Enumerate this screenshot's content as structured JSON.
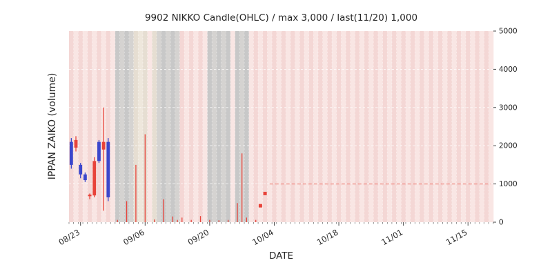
{
  "chart_data": {
    "type": "candlestick",
    "title": "9902 NIKKO Candle(OHLC) / max 3,000 / last(11/20) 1,000",
    "xlabel": "DATE",
    "ylabel": "IPPAN ZAIKO (volume)",
    "ylim": [
      0,
      5000
    ],
    "y_ticks": [
      0,
      1000,
      2000,
      3000,
      4000,
      5000
    ],
    "axis_start_date": "08/21",
    "days_total": 92,
    "max_value": 3000,
    "last_value": 1000,
    "last_date": "11/20",
    "x_ticks": [
      {
        "day": 2,
        "label": "08/23"
      },
      {
        "day": 16,
        "label": "09/06"
      },
      {
        "day": 30,
        "label": "09/20"
      },
      {
        "day": 44,
        "label": "10/04"
      },
      {
        "day": 58,
        "label": "10/18"
      },
      {
        "day": 72,
        "label": "11/01"
      },
      {
        "day": 86,
        "label": "11/15"
      }
    ],
    "bands": [
      {
        "from": 10,
        "to": 14,
        "type": "gray"
      },
      {
        "from": 14,
        "to": 17,
        "type": "tan"
      },
      {
        "from": 18,
        "to": 19,
        "type": "tan"
      },
      {
        "from": 19,
        "to": 24,
        "type": "gray"
      },
      {
        "from": 30,
        "to": 35,
        "type": "gray"
      },
      {
        "from": 36,
        "to": 39,
        "type": "gray"
      }
    ],
    "candles": [
      {
        "day": 0,
        "date": "08/21",
        "open": 2100,
        "high": 2200,
        "low": 1400,
        "close": 1500
      },
      {
        "day": 1,
        "date": "08/22",
        "open": 1950,
        "high": 2250,
        "low": 1850,
        "close": 2150
      },
      {
        "day": 2,
        "date": "08/23",
        "open": 1500,
        "high": 1550,
        "low": 1150,
        "close": 1250
      },
      {
        "day": 3,
        "date": "08/24",
        "open": 1250,
        "high": 1300,
        "low": 1050,
        "close": 1100
      },
      {
        "day": 4,
        "date": "08/25",
        "open": 680,
        "high": 750,
        "low": 600,
        "close": 720
      },
      {
        "day": 5,
        "date": "08/26",
        "open": 700,
        "high": 1700,
        "low": 650,
        "close": 1600
      },
      {
        "day": 6,
        "date": "08/27",
        "open": 2100,
        "high": 2150,
        "low": 1550,
        "close": 1600
      },
      {
        "day": 7,
        "date": "08/28",
        "open": 1900,
        "high": 3000,
        "low": 300,
        "close": 2100
      },
      {
        "day": 8,
        "date": "08/29",
        "open": 2100,
        "high": 2200,
        "low": 550,
        "close": 650
      }
    ],
    "spikes": [
      {
        "day": 10,
        "date": "08/31",
        "high": 60,
        "low": 0
      },
      {
        "day": 12,
        "date": "09/02",
        "high": 550,
        "low": 0
      },
      {
        "day": 14,
        "date": "09/04",
        "high": 1500,
        "low": 0
      },
      {
        "day": 16,
        "date": "09/06",
        "high": 2300,
        "low": 0
      },
      {
        "day": 18,
        "date": "09/08",
        "high": 70,
        "low": 0
      },
      {
        "day": 20,
        "date": "09/10",
        "high": 600,
        "low": 0
      },
      {
        "day": 22,
        "date": "09/12",
        "high": 150,
        "low": 0
      },
      {
        "day": 23,
        "date": "09/13",
        "high": 60,
        "low": 0
      },
      {
        "day": 24,
        "date": "09/14",
        "high": 120,
        "low": 0
      },
      {
        "day": 26,
        "date": "09/16",
        "high": 60,
        "low": 0
      },
      {
        "day": 28,
        "date": "09/18",
        "high": 160,
        "low": 0
      },
      {
        "day": 30,
        "date": "09/20",
        "high": 60,
        "low": 0
      },
      {
        "day": 32,
        "date": "09/22",
        "high": 50,
        "low": 0
      },
      {
        "day": 34,
        "date": "09/24",
        "high": 60,
        "low": 0
      },
      {
        "day": 36,
        "date": "09/26",
        "high": 500,
        "low": 0
      },
      {
        "day": 37,
        "date": "09/27",
        "high": 1800,
        "low": 0
      },
      {
        "day": 38,
        "date": "09/28",
        "high": 120,
        "low": 0
      },
      {
        "day": 40,
        "date": "09/30",
        "high": 60,
        "low": 0
      }
    ],
    "markers": [
      {
        "day": 41,
        "date": "10/01",
        "value": 430
      },
      {
        "day": 42,
        "date": "10/02",
        "value": 750
      }
    ],
    "last_price_line": {
      "value": 1000,
      "start_day": 43,
      "end_day": 91,
      "start_date": "10/03",
      "end_date": "11/20"
    }
  },
  "colors": {
    "up": "#e8433a",
    "down": "#3b47cc",
    "marker": "#e8433a",
    "last_line": "#ef8d85",
    "band_pink_a": "#f4d7d5",
    "band_pink_b": "#f9e6e4",
    "band_gray_a": "#c8c8c8",
    "band_gray_b": "#d5d3d1",
    "band_tan_a": "#e6ded2",
    "band_tan_b": "#eee7dc",
    "grid": "#ffffff",
    "tick": "#444444",
    "text": "#262626"
  }
}
